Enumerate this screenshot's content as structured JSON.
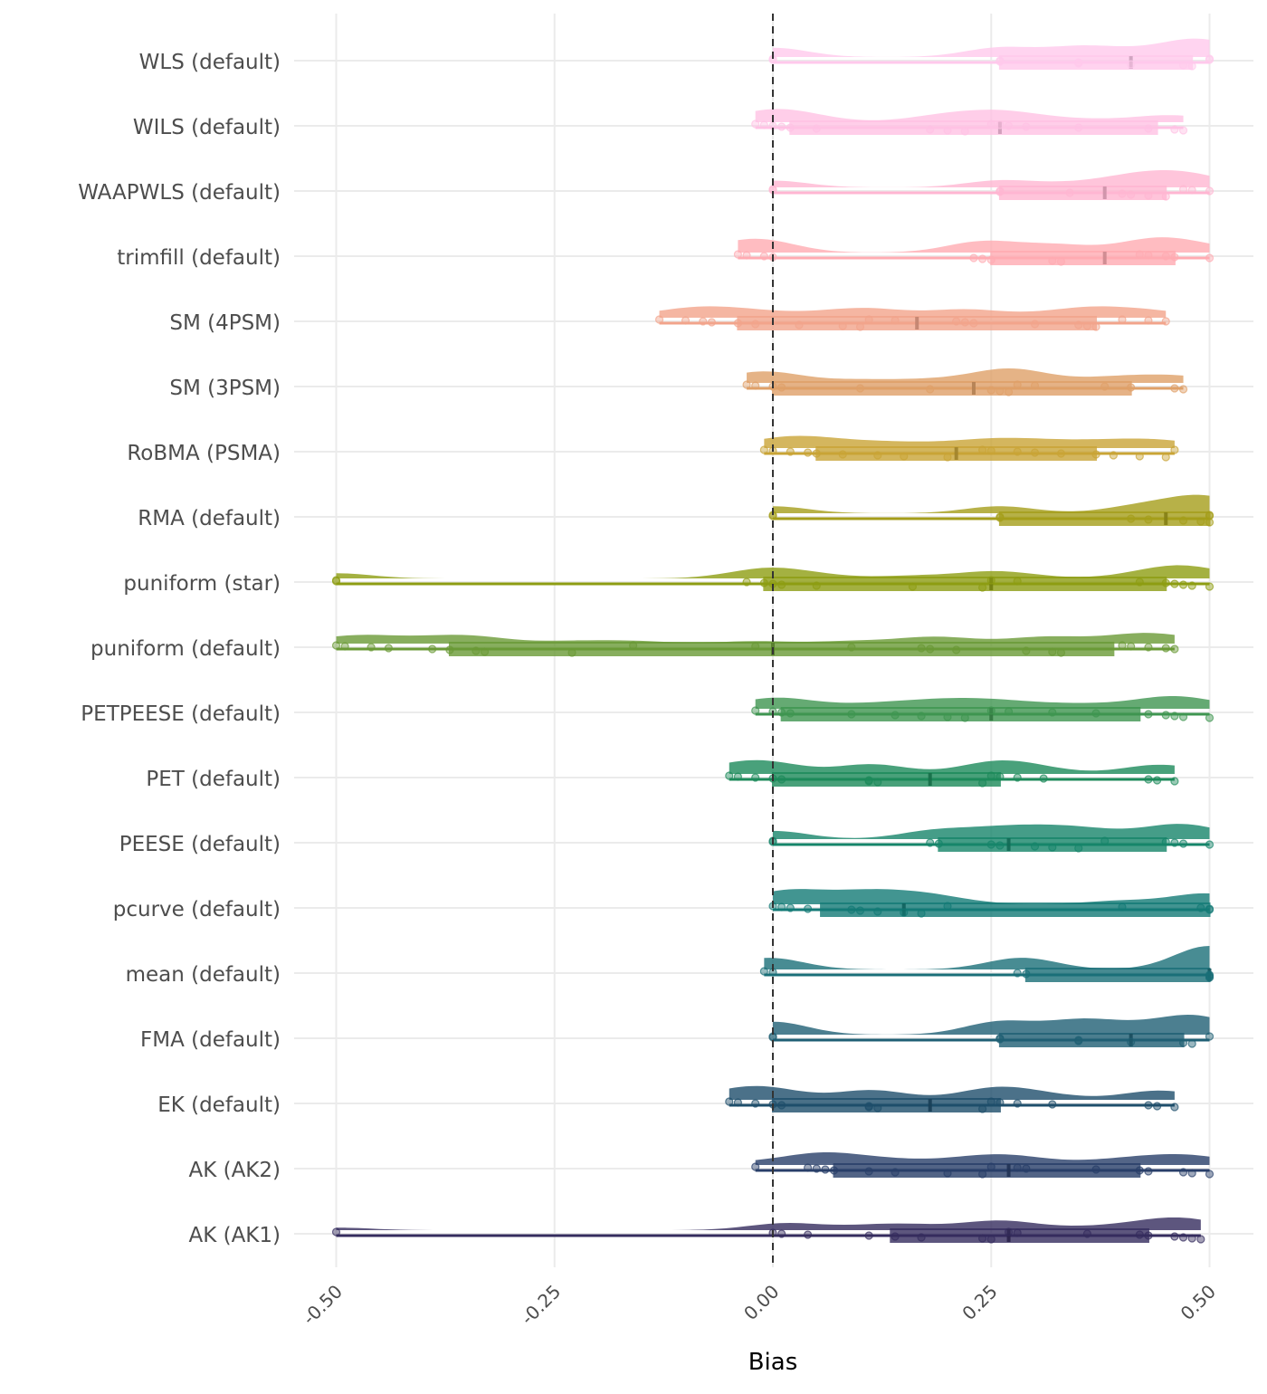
{
  "chart_data": {
    "type": "raincloud",
    "title": "",
    "xlabel": "Bias",
    "ylabel": "",
    "xlim": [
      -0.55,
      0.55
    ],
    "xticks": [
      -0.5,
      -0.25,
      0,
      0.25,
      0.5
    ],
    "xtick_labels": [
      "-0.50",
      "-0.25",
      "0.00",
      "0.25",
      "0.50"
    ],
    "reference_line": 0,
    "grid": true,
    "legend": "none",
    "series": [
      {
        "name": "WLS (default)",
        "color": "#FFC9EC",
        "whisker": [
          0,
          0.5
        ],
        "q1": 0.26,
        "median": 0.41,
        "q3": 0.48,
        "points": [
          0,
          0,
          0.26,
          0.26,
          0.35,
          0.35,
          0.41,
          0.47,
          0.48,
          0.5,
          0.5
        ]
      },
      {
        "name": "WILS (default)",
        "color": "#FFC2E4",
        "whisker": [
          -0.02,
          0.47
        ],
        "q1": 0.02,
        "median": 0.26,
        "q3": 0.44,
        "points": [
          -0.02,
          -0.01,
          0,
          0.01,
          0.02,
          0.05,
          0.18,
          0.2,
          0.22,
          0.25,
          0.26,
          0.27,
          0.29,
          0.35,
          0.43,
          0.46,
          0.47
        ]
      },
      {
        "name": "WAAPWLS (default)",
        "color": "#FFB6D2",
        "whisker": [
          0,
          0.5
        ],
        "q1": 0.26,
        "median": 0.38,
        "q3": 0.45,
        "points": [
          0,
          0,
          0.26,
          0.26,
          0.34,
          0.4,
          0.41,
          0.43,
          0.45,
          0.47,
          0.48,
          0.5
        ]
      },
      {
        "name": "trimfill (default)",
        "color": "#FFABB2",
        "whisker": [
          -0.04,
          0.5
        ],
        "q1": 0.25,
        "median": 0.38,
        "q3": 0.46,
        "points": [
          -0.04,
          -0.03,
          -0.01,
          0,
          0.23,
          0.24,
          0.25,
          0.32,
          0.33,
          0.42,
          0.43,
          0.45,
          0.46,
          0.5
        ]
      },
      {
        "name": "SM (4PSM)",
        "color": "#F2A48B",
        "whisker": [
          -0.13,
          0.45
        ],
        "q1": -0.04,
        "median": 0.165,
        "q3": 0.37,
        "points": [
          -0.13,
          -0.1,
          -0.08,
          -0.07,
          -0.04,
          -0.02,
          0.03,
          0.08,
          0.1,
          0.11,
          0.14,
          0.21,
          0.22,
          0.23,
          0.3,
          0.35,
          0.36,
          0.37,
          0.4,
          0.43,
          0.45
        ]
      },
      {
        "name": "SM (3PSM)",
        "color": "#DFA068",
        "whisker": [
          -0.03,
          0.47
        ],
        "q1": 0,
        "median": 0.23,
        "q3": 0.41,
        "points": [
          -0.03,
          -0.02,
          0,
          0.01,
          0.1,
          0.18,
          0.25,
          0.26,
          0.27,
          0.28,
          0.3,
          0.38,
          0.41,
          0.46,
          0.47
        ]
      },
      {
        "name": "RoBMA (PSMA)",
        "color": "#C9A436",
        "whisker": [
          -0.01,
          0.46
        ],
        "q1": 0.05,
        "median": 0.21,
        "q3": 0.37,
        "points": [
          -0.01,
          0,
          0.02,
          0.04,
          0.05,
          0.08,
          0.12,
          0.15,
          0.2,
          0.24,
          0.25,
          0.28,
          0.3,
          0.33,
          0.37,
          0.39,
          0.42,
          0.45,
          0.46
        ]
      },
      {
        "name": "RMA (default)",
        "color": "#A59E1A",
        "whisker": [
          0,
          0.5
        ],
        "q1": 0.26,
        "median": 0.45,
        "q3": 0.5,
        "points": [
          0,
          0,
          0.26,
          0.26,
          0.41,
          0.43,
          0.47,
          0.49,
          0.5,
          0.5,
          0.5
        ]
      },
      {
        "name": "puniform (star)",
        "color": "#8D9D12",
        "whisker": [
          -0.5,
          0.5
        ],
        "q1": -0.01,
        "median": 0.25,
        "q3": 0.45,
        "points": [
          -0.5,
          -0.5,
          -0.03,
          -0.01,
          0,
          0.01,
          0.05,
          0.16,
          0.24,
          0.25,
          0.28,
          0.42,
          0.45,
          0.46,
          0.47,
          0.48,
          0.5
        ]
      },
      {
        "name": "puniform (default)",
        "color": "#6A9A36",
        "whisker": [
          -0.5,
          0.46
        ],
        "q1": -0.37,
        "median": 0,
        "q3": 0.39,
        "points": [
          -0.5,
          -0.49,
          -0.46,
          -0.44,
          -0.39,
          -0.37,
          -0.34,
          -0.33,
          -0.23,
          -0.16,
          -0.02,
          0.09,
          0.17,
          0.18,
          0.21,
          0.29,
          0.32,
          0.33,
          0.4,
          0.41,
          0.43,
          0.45,
          0.46
        ]
      },
      {
        "name": "PETPEESE (default)",
        "color": "#3E9550",
        "whisker": [
          -0.02,
          0.5
        ],
        "q1": 0.01,
        "median": 0.25,
        "q3": 0.42,
        "points": [
          -0.02,
          0,
          0.01,
          0.02,
          0.09,
          0.14,
          0.17,
          0.2,
          0.22,
          0.25,
          0.27,
          0.32,
          0.37,
          0.43,
          0.45,
          0.46,
          0.47,
          0.5
        ]
      },
      {
        "name": "PET (default)",
        "color": "#1C8A5A",
        "whisker": [
          -0.05,
          0.46
        ],
        "q1": 0,
        "median": 0.18,
        "q3": 0.26,
        "points": [
          -0.05,
          -0.04,
          -0.02,
          0,
          0.01,
          0.11,
          0.11,
          0.12,
          0.24,
          0.25,
          0.26,
          0.28,
          0.31,
          0.43,
          0.44,
          0.46
        ]
      },
      {
        "name": "PEESE (default)",
        "color": "#16856A",
        "whisker": [
          0,
          0.5
        ],
        "q1": 0.19,
        "median": 0.27,
        "q3": 0.45,
        "points": [
          0,
          0,
          0.18,
          0.19,
          0.25,
          0.26,
          0.3,
          0.32,
          0.35,
          0.38,
          0.45,
          0.46,
          0.47,
          0.5
        ]
      },
      {
        "name": "pcurve (default)",
        "color": "#137A76",
        "whisker": [
          0,
          0.5
        ],
        "q1": 0.055,
        "median": 0.15,
        "q3": 0.5,
        "points": [
          0,
          0.01,
          0.02,
          0.04,
          0.09,
          0.1,
          0.12,
          0.15,
          0.17,
          0.2,
          0.4,
          0.49,
          0.5,
          0.5
        ]
      },
      {
        "name": "mean (default)",
        "color": "#1A6F78",
        "whisker": [
          -0.01,
          0.5
        ],
        "q1": 0.29,
        "median": 0.5,
        "q3": 0.5,
        "points": [
          -0.01,
          0,
          0.28,
          0.29,
          0.5,
          0.5,
          0.5,
          0.5
        ]
      },
      {
        "name": "FMA (default)",
        "color": "#1F5F74",
        "whisker": [
          0,
          0.5
        ],
        "q1": 0.26,
        "median": 0.41,
        "q3": 0.47,
        "points": [
          0,
          0,
          0.26,
          0.26,
          0.35,
          0.35,
          0.41,
          0.47,
          0.48,
          0.5
        ]
      },
      {
        "name": "EK (default)",
        "color": "#1E4E6B",
        "whisker": [
          -0.05,
          0.46
        ],
        "q1": 0,
        "median": 0.18,
        "q3": 0.26,
        "points": [
          -0.05,
          -0.04,
          -0.02,
          0,
          0.01,
          0.11,
          0.11,
          0.12,
          0.24,
          0.25,
          0.26,
          0.28,
          0.32,
          0.43,
          0.44,
          0.46
        ]
      },
      {
        "name": "AK (AK2)",
        "color": "#283E69",
        "whisker": [
          -0.02,
          0.5
        ],
        "q1": 0.07,
        "median": 0.27,
        "q3": 0.42,
        "points": [
          -0.02,
          0.04,
          0.05,
          0.06,
          0.07,
          0.11,
          0.14,
          0.2,
          0.24,
          0.25,
          0.28,
          0.29,
          0.37,
          0.42,
          0.43,
          0.47,
          0.48,
          0.5
        ]
      },
      {
        "name": "AK (AK1)",
        "color": "#352C5E",
        "whisker": [
          -0.5,
          0.49
        ],
        "q1": 0.135,
        "median": 0.27,
        "q3": 0.43,
        "points": [
          -0.5,
          0,
          0.01,
          0.04,
          0.11,
          0.14,
          0.17,
          0.24,
          0.25,
          0.27,
          0.28,
          0.36,
          0.42,
          0.43,
          0.46,
          0.47,
          0.48,
          0.49
        ]
      }
    ]
  }
}
